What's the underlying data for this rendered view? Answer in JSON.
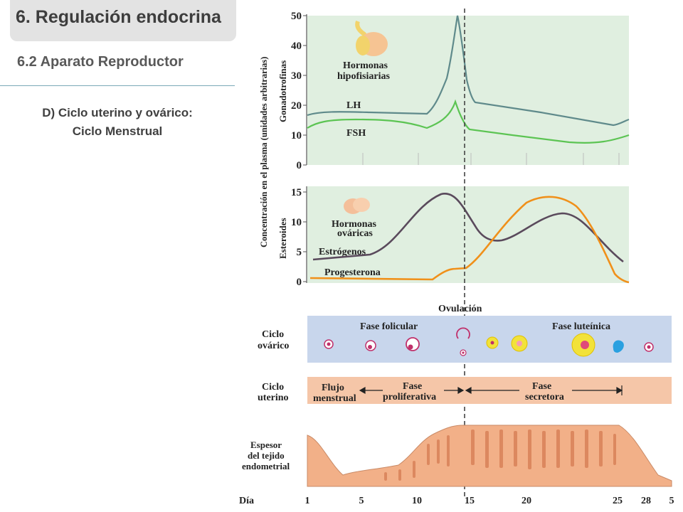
{
  "header": {
    "title": "6. Regulación endocrina",
    "subtitle": "6.2 Aparato Reproductor",
    "section_line1": "D) Ciclo uterino y ovárico:",
    "section_line2": "Ciclo Menstrual"
  },
  "diagram": {
    "y_axis_label": "Concentración en el plasma (unidades arbitrarias)",
    "gonad_label": "Gonadotrofinas",
    "ster_label": "Esteroides",
    "gonad_ticks": [
      "0",
      "10",
      "20",
      "30",
      "40",
      "50"
    ],
    "ster_ticks": [
      "0",
      "5",
      "10",
      "15"
    ],
    "pit_label_1": "Hormonas",
    "pit_label_2": "hipofisiarias",
    "lh_label": "LH",
    "fsh_label": "FSH",
    "ov_label_1": "Hormonas",
    "ov_label_2": "ováricas",
    "estro_label": "Estrógenos",
    "prog_label": "Progesterona",
    "ovulation_label": "Ovulación",
    "ovarian_row_1": "Ciclo",
    "ovarian_row_2": "ovárico",
    "follicular_label": "Fase folicular",
    "luteal_label": "Fase luteínica",
    "uterine_row_1": "Ciclo",
    "uterine_row_2": "uterino",
    "flow_1": "Flujo",
    "flow_2": "menstrual",
    "prolif_1": "Fase",
    "prolif_2": "proliferativa",
    "secret_1": "Fase",
    "secret_2": "secretora",
    "thickness_1": "Espesor",
    "thickness_2": "del tejido",
    "thickness_3": "endometrial",
    "day_label": "Día",
    "days": [
      "1",
      "5",
      "10",
      "15",
      "20",
      "25",
      "28",
      "5"
    ]
  },
  "colors": {
    "lh": "#5f8a8b",
    "fsh": "#5cc453",
    "estrogen": "#5a4a5c",
    "progesterone": "#f0901a",
    "chart_bg": "#e0efe0",
    "ovarian_band": "#c8d6ec",
    "uterine_band": "#f5c6a8",
    "endometrium": "#f2b088"
  }
}
